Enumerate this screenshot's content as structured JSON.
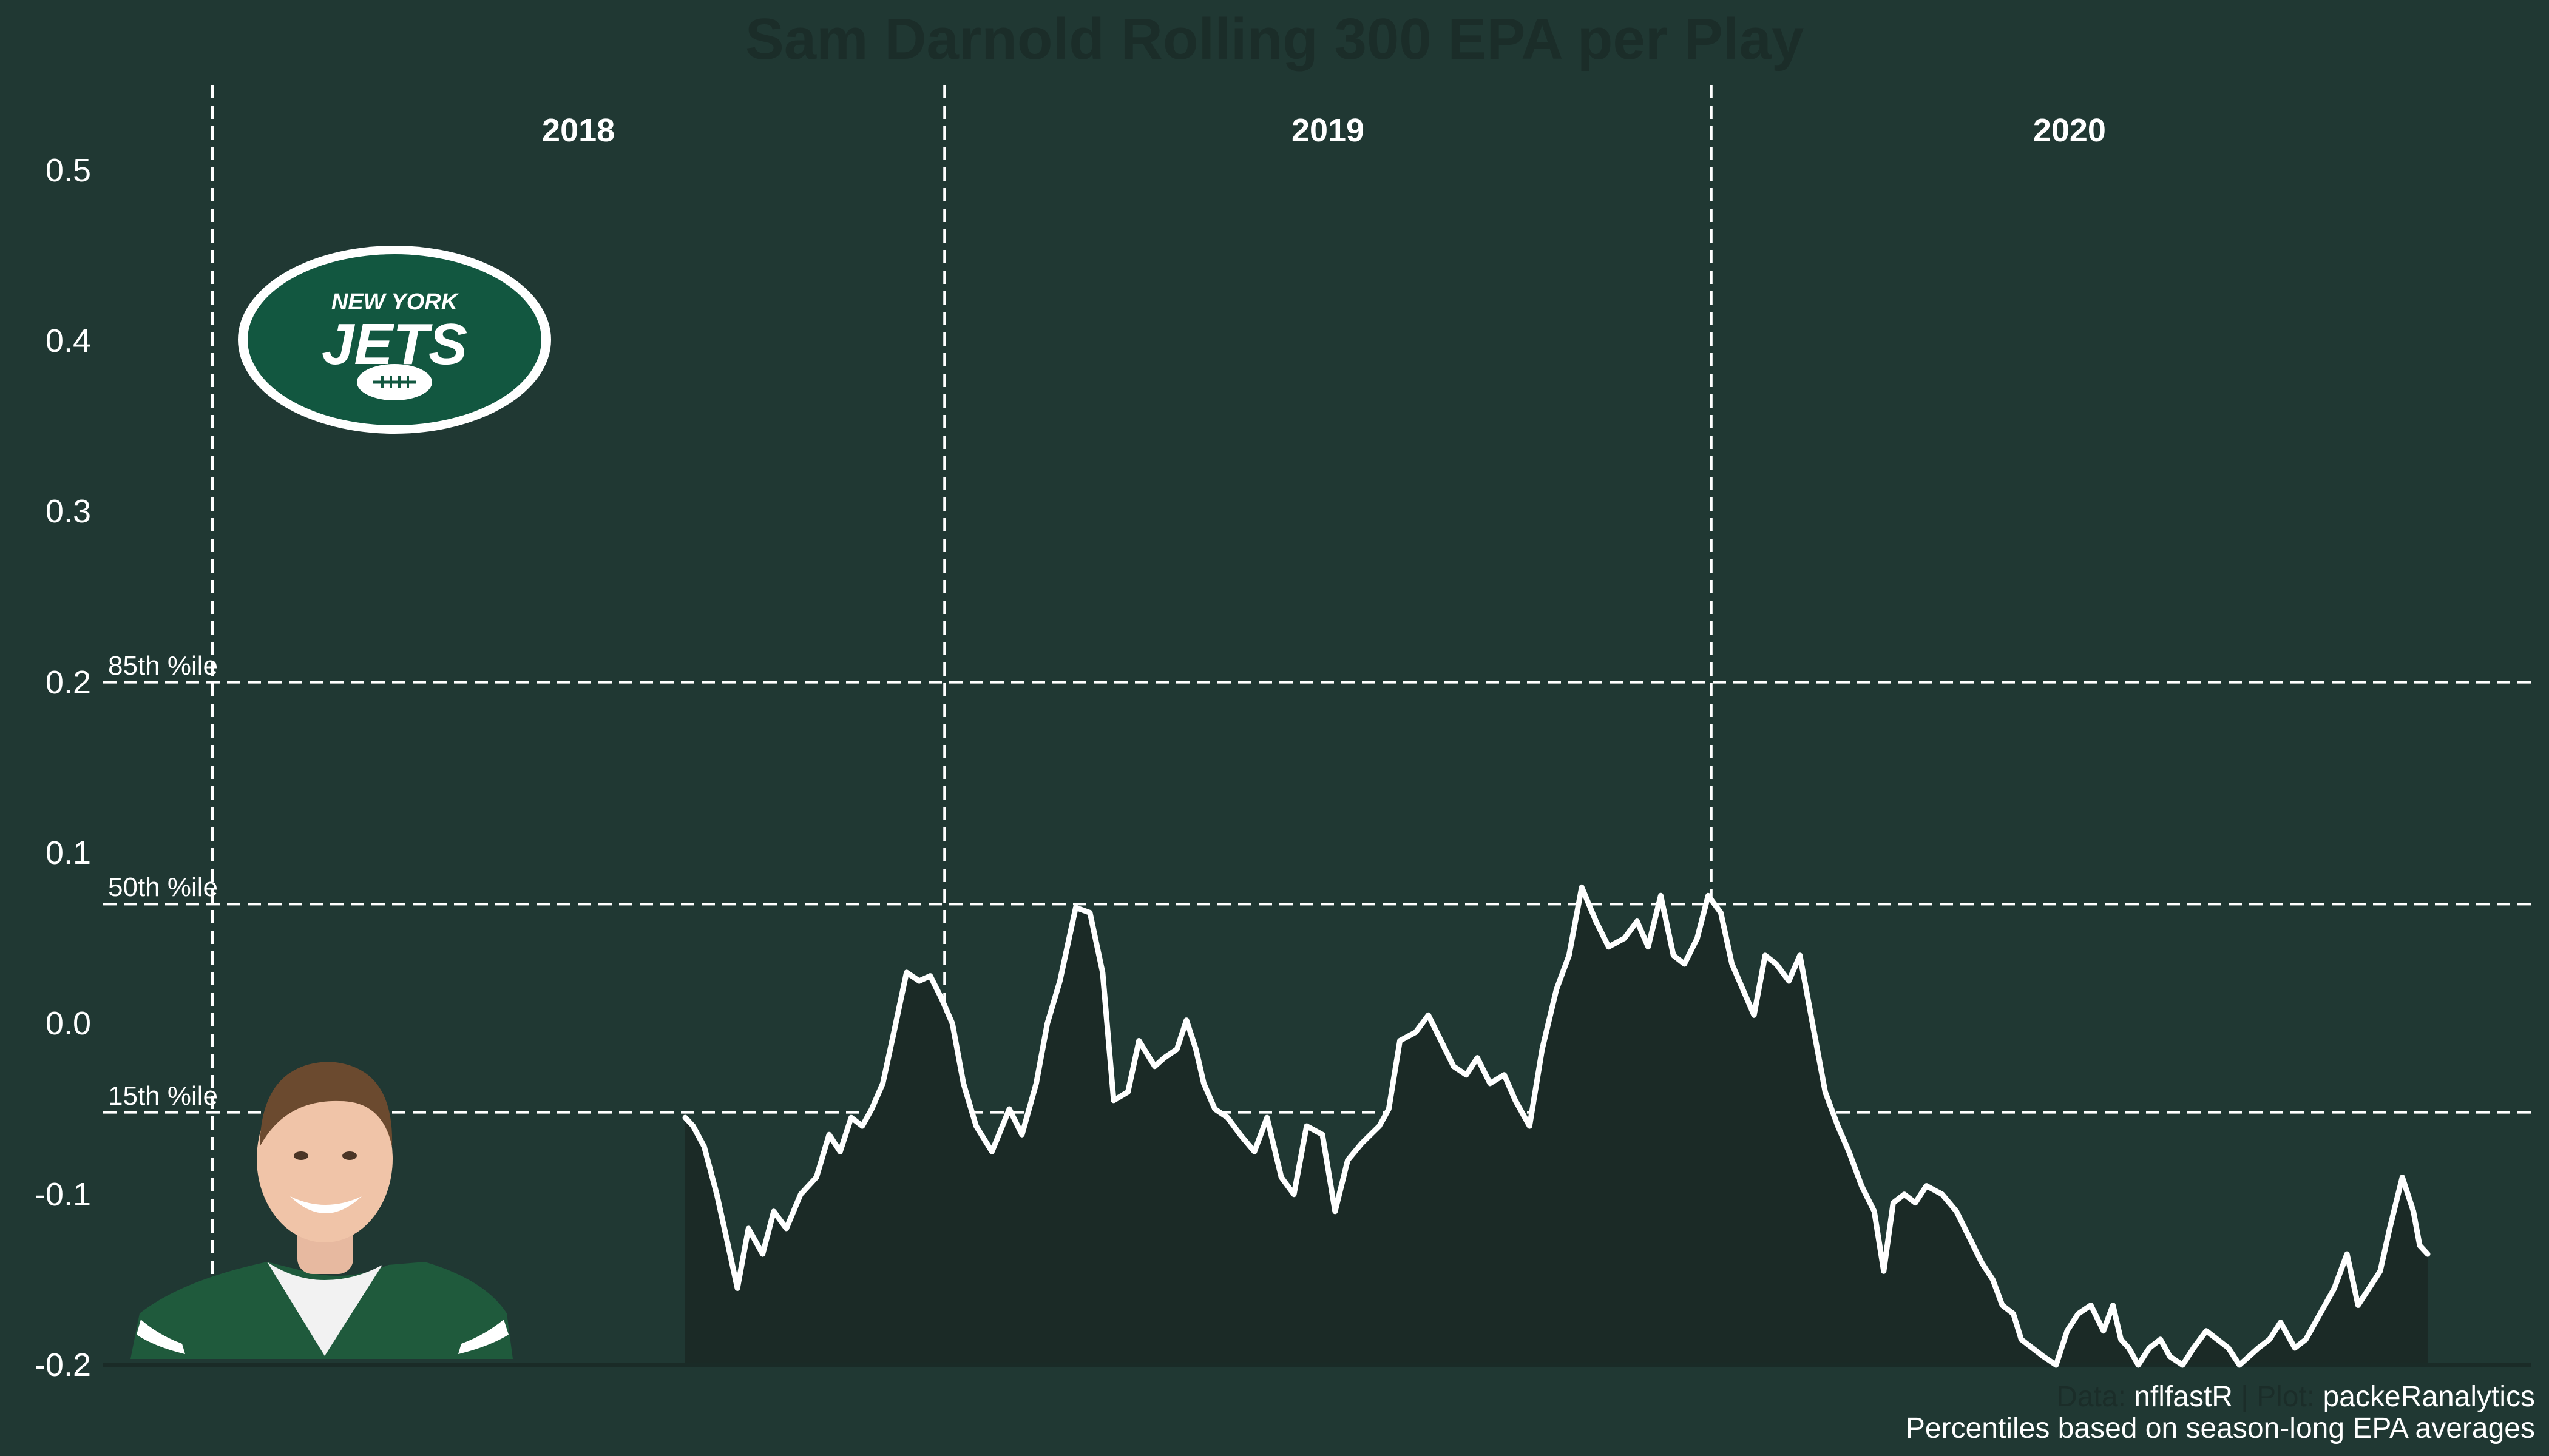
{
  "chart_data": {
    "type": "area",
    "title": "Sam Darnold Rolling 300 EPA per Play",
    "xlabel": "",
    "ylabel": "",
    "ylim": [
      -0.2,
      0.55
    ],
    "yticks": [
      {
        "value": 0.5,
        "label": "0.5"
      },
      {
        "value": 0.4,
        "label": "0.4"
      },
      {
        "value": 0.3,
        "label": "0.3"
      },
      {
        "value": 0.2,
        "label": "0.2"
      },
      {
        "value": 0.1,
        "label": "0.1"
      },
      {
        "value": 0.0,
        "label": "0.0"
      },
      {
        "value": -0.1,
        "label": "-0.1"
      },
      {
        "value": -0.2,
        "label": "-0.2"
      }
    ],
    "grid": false,
    "season_bounds": [
      {
        "season": "2018",
        "start": 1,
        "end": 464
      },
      {
        "season": "2019",
        "start": 464,
        "end": 949
      },
      {
        "season": "2020",
        "start": 949,
        "end": 1402
      }
    ],
    "reference_lines": [
      {
        "label": "85th %ile",
        "value": 0.2
      },
      {
        "label": "50th %ile",
        "value": 0.07
      },
      {
        "label": "15th %ile",
        "value": -0.052
      }
    ],
    "series": [
      {
        "x": [
          300,
          305,
          312,
          320,
          326,
          333,
          340,
          349,
          356,
          364,
          373,
          383,
          391,
          398,
          405,
          412,
          418,
          425,
          432,
          440,
          448,
          455,
          462,
          469,
          476,
          484,
          494,
          505,
          513,
          522,
          529,
          537,
          547,
          556,
          564,
          571,
          580,
          587,
          597,
          603,
          611,
          617,
          623,
          628,
          635,
          643,
          651,
          660,
          668,
          677,
          685,
          693,
          703,
          711,
          719,
          728,
          739,
          745,
          752,
          762,
          770,
          778,
          786,
          794,
          801,
          809,
          818,
          825,
          834,
          842,
          851,
          859,
          867,
          876,
          884,
          894,
          902,
          909,
          917,
          925,
          932,
          940,
          947,
          955,
          962,
          969,
          976,
          983,
          990,
          998,
          1005,
          1013,
          1021,
          1029,
          1036,
          1044,
          1052,
          1058,
          1064,
          1071,
          1078,
          1085,
          1095,
          1104,
          1112,
          1120,
          1127,
          1133,
          1140,
          1145,
          1152,
          1159,
          1167,
          1174,
          1181,
          1189,
          1197,
          1203,
          1208,
          1213,
          1219,
          1226,
          1233,
          1239,
          1247,
          1254,
          1262,
          1269,
          1276,
          1283,
          1289,
          1295,
          1302,
          1309,
          1318,
          1325,
          1331,
          1337,
          1343,
          1351,
          1358,
          1365,
          1372,
          1378,
          1386,
          1393,
          1397,
          1402
        ],
        "y": [
          -0.055,
          -0.06,
          -0.072,
          -0.1,
          -0.125,
          -0.155,
          -0.12,
          -0.135,
          -0.11,
          -0.12,
          -0.1,
          -0.09,
          -0.065,
          -0.075,
          -0.055,
          -0.06,
          -0.05,
          -0.035,
          -0.005,
          0.03,
          0.025,
          0.028,
          0.015,
          0.0,
          -0.035,
          -0.06,
          -0.075,
          -0.05,
          -0.065,
          -0.035,
          0.0,
          0.025,
          0.068,
          0.065,
          0.03,
          -0.045,
          -0.04,
          -0.01,
          -0.025,
          -0.02,
          -0.015,
          0.002,
          -0.015,
          -0.035,
          -0.05,
          -0.055,
          -0.065,
          -0.075,
          -0.055,
          -0.09,
          -0.1,
          -0.06,
          -0.065,
          -0.11,
          -0.08,
          -0.07,
          -0.06,
          -0.05,
          -0.01,
          -0.005,
          0.005,
          -0.01,
          -0.025,
          -0.03,
          -0.02,
          -0.035,
          -0.03,
          -0.045,
          -0.06,
          -0.015,
          0.02,
          0.04,
          0.08,
          0.06,
          0.045,
          0.05,
          0.06,
          0.045,
          0.075,
          0.04,
          0.035,
          0.05,
          0.075,
          0.065,
          0.035,
          0.02,
          0.005,
          0.04,
          0.035,
          0.025,
          0.04,
          0.0,
          -0.04,
          -0.06,
          -0.075,
          -0.095,
          -0.11,
          -0.145,
          -0.105,
          -0.1,
          -0.105,
          -0.095,
          -0.1,
          -0.11,
          -0.125,
          -0.14,
          -0.15,
          -0.165,
          -0.17,
          -0.185,
          -0.19,
          -0.195,
          -0.2,
          -0.18,
          -0.17,
          -0.165,
          -0.18,
          -0.165,
          -0.185,
          -0.19,
          -0.2,
          -0.19,
          -0.185,
          -0.195,
          -0.2,
          -0.19,
          -0.18,
          -0.185,
          -0.19,
          -0.2,
          -0.195,
          -0.19,
          -0.185,
          -0.175,
          -0.19,
          -0.185,
          -0.175,
          -0.165,
          -0.155,
          -0.135,
          -0.165,
          -0.155,
          -0.145,
          -0.12,
          -0.09,
          -0.11,
          -0.13,
          -0.135
        ]
      }
    ]
  },
  "images": {
    "team_logo": {
      "line1": "NEW YORK",
      "line2": "JETS"
    },
    "player_headshot": "player-headshot"
  },
  "caption": {
    "data_label": "Data: ",
    "data_value": "nflfastR",
    "plot_label": " | Plot: ",
    "plot_value": "packeRanalytics",
    "note": "Percentiles based on season-long EPA averages"
  },
  "colors": {
    "background": "#203833",
    "line": "#ffffff",
    "area_fill": "#1b2a26",
    "logo_green": "#125740",
    "muted_text": "#1b2d29"
  }
}
